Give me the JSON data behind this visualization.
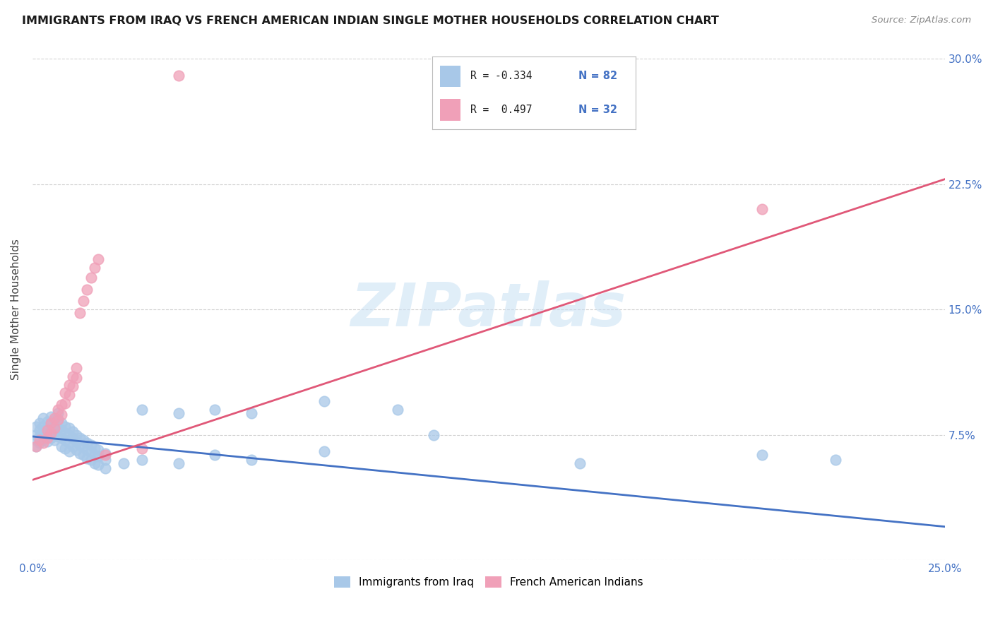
{
  "title": "IMMIGRANTS FROM IRAQ VS FRENCH AMERICAN INDIAN SINGLE MOTHER HOUSEHOLDS CORRELATION CHART",
  "source": "Source: ZipAtlas.com",
  "ylabel": "Single Mother Households",
  "yticks": [
    0.0,
    0.075,
    0.15,
    0.225,
    0.3
  ],
  "ytick_labels": [
    "",
    "7.5%",
    "15.0%",
    "22.5%",
    "30.0%"
  ],
  "xticks": [
    0.0,
    0.05,
    0.1,
    0.15,
    0.2,
    0.25
  ],
  "xtick_labels": [
    "0.0%",
    "",
    "",
    "",
    "",
    "25.0%"
  ],
  "xlim": [
    0.0,
    0.25
  ],
  "ylim": [
    0.0,
    0.3
  ],
  "blue_color": "#a8c8e8",
  "pink_color": "#f0a0b8",
  "blue_line_color": "#4472c4",
  "pink_line_color": "#e05878",
  "label_color": "#4472c4",
  "blue_scatter": [
    [
      0.001,
      0.075
    ],
    [
      0.001,
      0.08
    ],
    [
      0.001,
      0.072
    ],
    [
      0.001,
      0.068
    ],
    [
      0.002,
      0.082
    ],
    [
      0.002,
      0.078
    ],
    [
      0.002,
      0.074
    ],
    [
      0.002,
      0.07
    ],
    [
      0.003,
      0.085
    ],
    [
      0.003,
      0.08
    ],
    [
      0.003,
      0.076
    ],
    [
      0.003,
      0.072
    ],
    [
      0.004,
      0.083
    ],
    [
      0.004,
      0.079
    ],
    [
      0.004,
      0.075
    ],
    [
      0.004,
      0.071
    ],
    [
      0.005,
      0.086
    ],
    [
      0.005,
      0.082
    ],
    [
      0.005,
      0.078
    ],
    [
      0.005,
      0.073
    ],
    [
      0.006,
      0.084
    ],
    [
      0.006,
      0.08
    ],
    [
      0.006,
      0.076
    ],
    [
      0.006,
      0.072
    ],
    [
      0.007,
      0.088
    ],
    [
      0.007,
      0.084
    ],
    [
      0.007,
      0.079
    ],
    [
      0.007,
      0.074
    ],
    [
      0.008,
      0.082
    ],
    [
      0.008,
      0.078
    ],
    [
      0.008,
      0.073
    ],
    [
      0.008,
      0.068
    ],
    [
      0.009,
      0.08
    ],
    [
      0.009,
      0.076
    ],
    [
      0.009,
      0.072
    ],
    [
      0.009,
      0.067
    ],
    [
      0.01,
      0.079
    ],
    [
      0.01,
      0.075
    ],
    [
      0.01,
      0.07
    ],
    [
      0.01,
      0.065
    ],
    [
      0.011,
      0.077
    ],
    [
      0.011,
      0.073
    ],
    [
      0.011,
      0.068
    ],
    [
      0.012,
      0.075
    ],
    [
      0.012,
      0.071
    ],
    [
      0.012,
      0.066
    ],
    [
      0.013,
      0.073
    ],
    [
      0.013,
      0.069
    ],
    [
      0.013,
      0.064
    ],
    [
      0.014,
      0.072
    ],
    [
      0.014,
      0.068
    ],
    [
      0.014,
      0.063
    ],
    [
      0.015,
      0.07
    ],
    [
      0.015,
      0.066
    ],
    [
      0.015,
      0.061
    ],
    [
      0.016,
      0.069
    ],
    [
      0.016,
      0.065
    ],
    [
      0.016,
      0.06
    ],
    [
      0.017,
      0.067
    ],
    [
      0.017,
      0.063
    ],
    [
      0.017,
      0.058
    ],
    [
      0.018,
      0.066
    ],
    [
      0.018,
      0.062
    ],
    [
      0.018,
      0.057
    ],
    [
      0.02,
      0.064
    ],
    [
      0.02,
      0.06
    ],
    [
      0.02,
      0.055
    ],
    [
      0.025,
      0.058
    ],
    [
      0.03,
      0.09
    ],
    [
      0.03,
      0.06
    ],
    [
      0.04,
      0.088
    ],
    [
      0.04,
      0.058
    ],
    [
      0.05,
      0.09
    ],
    [
      0.05,
      0.063
    ],
    [
      0.06,
      0.088
    ],
    [
      0.06,
      0.06
    ],
    [
      0.08,
      0.095
    ],
    [
      0.08,
      0.065
    ],
    [
      0.1,
      0.09
    ],
    [
      0.11,
      0.075
    ],
    [
      0.15,
      0.058
    ],
    [
      0.2,
      0.063
    ],
    [
      0.22,
      0.06
    ]
  ],
  "pink_scatter": [
    [
      0.001,
      0.068
    ],
    [
      0.002,
      0.072
    ],
    [
      0.003,
      0.07
    ],
    [
      0.004,
      0.078
    ],
    [
      0.004,
      0.073
    ],
    [
      0.005,
      0.082
    ],
    [
      0.005,
      0.076
    ],
    [
      0.006,
      0.085
    ],
    [
      0.006,
      0.079
    ],
    [
      0.007,
      0.09
    ],
    [
      0.007,
      0.084
    ],
    [
      0.008,
      0.093
    ],
    [
      0.008,
      0.087
    ],
    [
      0.009,
      0.1
    ],
    [
      0.009,
      0.094
    ],
    [
      0.01,
      0.105
    ],
    [
      0.01,
      0.099
    ],
    [
      0.011,
      0.11
    ],
    [
      0.011,
      0.104
    ],
    [
      0.012,
      0.115
    ],
    [
      0.012,
      0.109
    ],
    [
      0.013,
      0.148
    ],
    [
      0.014,
      0.155
    ],
    [
      0.015,
      0.162
    ],
    [
      0.016,
      0.169
    ],
    [
      0.017,
      0.175
    ],
    [
      0.018,
      0.18
    ],
    [
      0.02,
      0.063
    ],
    [
      0.03,
      0.067
    ],
    [
      0.2,
      0.21
    ],
    [
      0.04,
      0.29
    ]
  ],
  "blue_line_x": [
    0.0,
    0.25
  ],
  "blue_line_y": [
    0.074,
    0.02
  ],
  "pink_line_x": [
    0.0,
    0.25
  ],
  "pink_line_y": [
    0.048,
    0.228
  ],
  "watermark": "ZIPatlas",
  "figsize": [
    14.06,
    8.92
  ],
  "dpi": 100
}
